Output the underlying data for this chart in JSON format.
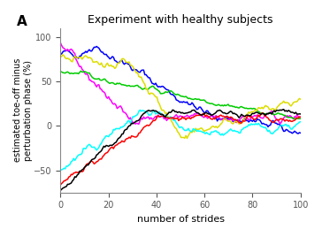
{
  "title": "Experiment with healthy subjects",
  "panel_label": "A",
  "xlabel": "number of strides",
  "ylabel": "estimated toe-off minus\nperturbation phase (%)",
  "xlim": [
    0,
    100
  ],
  "ylim": [
    -75,
    110
  ],
  "yticks": [
    -50,
    0,
    50,
    100
  ],
  "xticks": [
    0,
    20,
    40,
    60,
    80,
    100
  ],
  "background_color": "#ffffff",
  "seed": 42
}
